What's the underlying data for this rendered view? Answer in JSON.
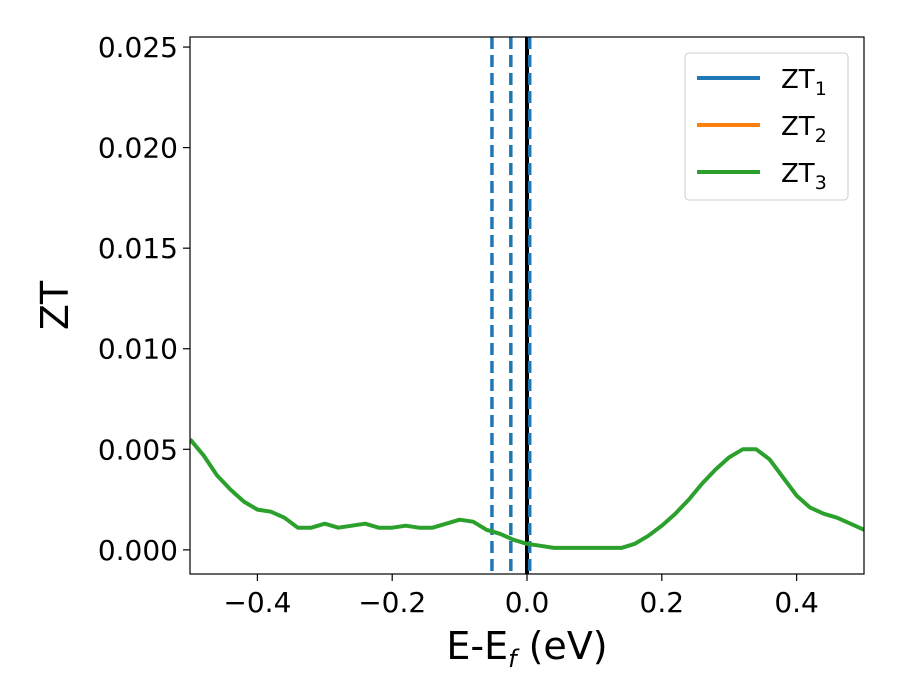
{
  "chart_data": {
    "type": "line",
    "title": "",
    "xlabel": {
      "main": "E-E",
      "sub": "f",
      "suffix": " (eV)"
    },
    "ylabel": "ZT",
    "xlim": [
      -0.5,
      0.5
    ],
    "ylim": [
      -0.0012,
      0.0255
    ],
    "xticks": [
      -0.4,
      -0.2,
      0.0,
      0.2,
      0.4
    ],
    "xtick_labels": [
      "−0.4",
      "−0.2",
      "0.0",
      "0.2",
      "0.4"
    ],
    "yticks": [
      0.0,
      0.005,
      0.01,
      0.015,
      0.02,
      0.025
    ],
    "ytick_labels": [
      "0.000",
      "0.005",
      "0.010",
      "0.015",
      "0.020",
      "0.025"
    ],
    "grid": false,
    "legend_position": "top-right",
    "series": [
      {
        "name": "ZT",
        "sub": "1",
        "color": "#1f77b4",
        "x": [],
        "y": []
      },
      {
        "name": "ZT",
        "sub": "2",
        "color": "#ff7f0e",
        "x": [],
        "y": []
      },
      {
        "name": "ZT",
        "sub": "3",
        "color": "#2ca02c",
        "x": [
          -0.5,
          -0.48,
          -0.46,
          -0.44,
          -0.42,
          -0.4,
          -0.38,
          -0.36,
          -0.34,
          -0.32,
          -0.3,
          -0.28,
          -0.26,
          -0.24,
          -0.22,
          -0.2,
          -0.18,
          -0.16,
          -0.14,
          -0.12,
          -0.1,
          -0.08,
          -0.06,
          -0.04,
          -0.02,
          0.0,
          0.02,
          0.04,
          0.06,
          0.08,
          0.1,
          0.12,
          0.14,
          0.16,
          0.18,
          0.2,
          0.22,
          0.24,
          0.26,
          0.28,
          0.3,
          0.32,
          0.34,
          0.36,
          0.38,
          0.4,
          0.42,
          0.44,
          0.46,
          0.48,
          0.5
        ],
        "y": [
          0.0055,
          0.0047,
          0.0037,
          0.003,
          0.0024,
          0.002,
          0.0019,
          0.0016,
          0.0011,
          0.0011,
          0.0013,
          0.0011,
          0.0012,
          0.0013,
          0.0011,
          0.0011,
          0.0012,
          0.0011,
          0.0011,
          0.0013,
          0.0015,
          0.0014,
          0.001,
          0.0008,
          0.0005,
          0.0003,
          0.0002,
          0.0001,
          0.0001,
          0.0001,
          0.0001,
          0.0001,
          0.0001,
          0.0003,
          0.0007,
          0.0012,
          0.0018,
          0.0025,
          0.0033,
          0.004,
          0.0046,
          0.005,
          0.005,
          0.0045,
          0.0036,
          0.0027,
          0.0021,
          0.0018,
          0.0016,
          0.0013,
          0.001
        ]
      }
    ],
    "vlines": [
      {
        "x": -0.052,
        "style": "dashed",
        "color": "#1f77b4"
      },
      {
        "x": -0.024,
        "style": "dashed",
        "color": "#1f77b4"
      },
      {
        "x": 0.0,
        "style": "solid",
        "color": "#000000"
      },
      {
        "x": 0.004,
        "style": "dashed",
        "color": "#1f77b4"
      }
    ]
  }
}
